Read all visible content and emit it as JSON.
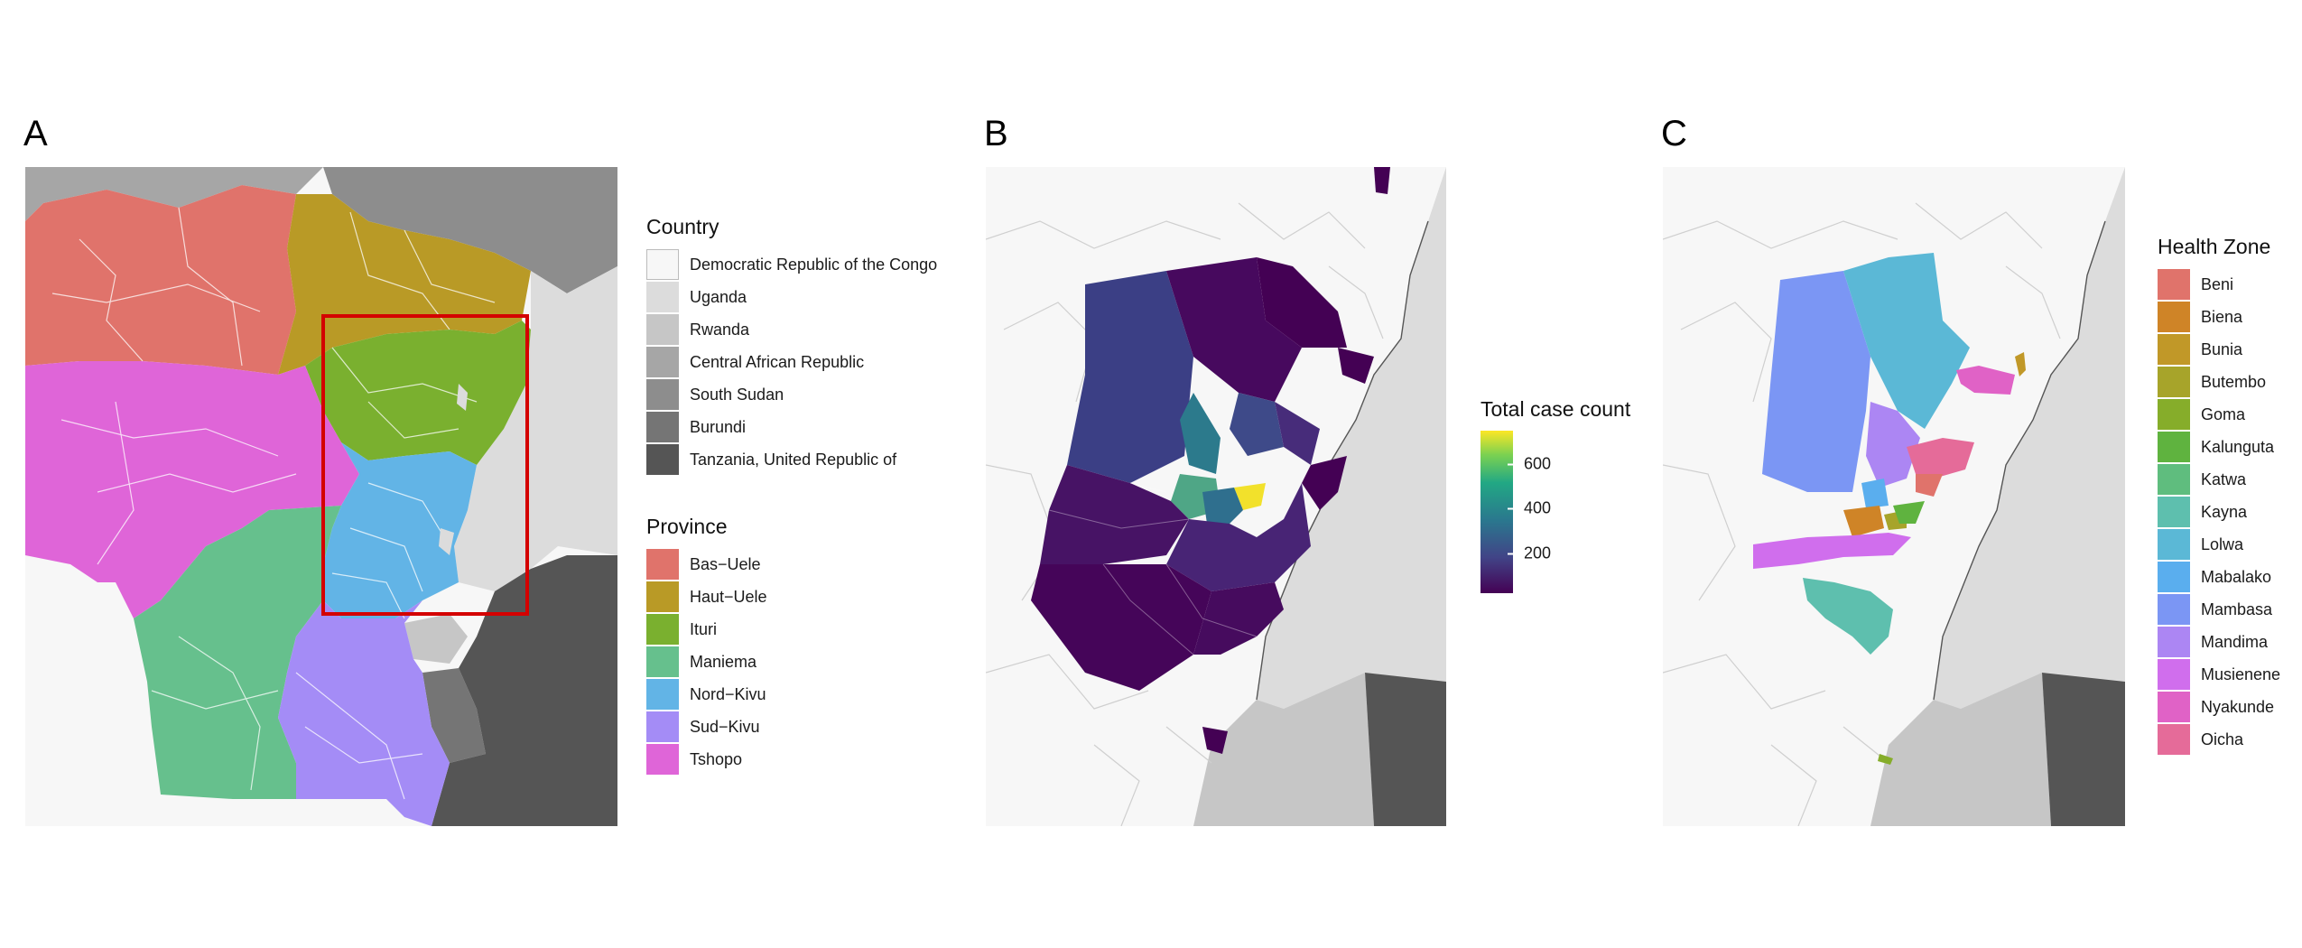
{
  "panels": {
    "a": {
      "letter": "A"
    },
    "b": {
      "letter": "B"
    },
    "c": {
      "letter": "C"
    }
  },
  "colors": {
    "drc": "#f7f7f7",
    "uganda": "#dcdcdc",
    "rwanda": "#c6c6c6",
    "car": "#a6a6a6",
    "south_sudan": "#8d8d8d",
    "burundi": "#757575",
    "tanzania": "#555555",
    "inset_box": "#d40000"
  },
  "legend_country": {
    "title": "Country",
    "items": [
      {
        "label": "Democratic Republic of the Congo",
        "color": "#f7f7f7"
      },
      {
        "label": "Uganda",
        "color": "#dcdcdc"
      },
      {
        "label": "Rwanda",
        "color": "#c6c6c6"
      },
      {
        "label": "Central African Republic",
        "color": "#a6a6a6"
      },
      {
        "label": "South Sudan",
        "color": "#8d8d8d"
      },
      {
        "label": "Burundi",
        "color": "#757575"
      },
      {
        "label": "Tanzania, United Republic of",
        "color": "#555555"
      }
    ]
  },
  "legend_province": {
    "title": "Province",
    "items": [
      {
        "label": "Bas−Uele",
        "color": "#e0736b"
      },
      {
        "label": "Haut−Uele",
        "color": "#b99a26"
      },
      {
        "label": "Ituri",
        "color": "#7ab02f"
      },
      {
        "label": "Maniema",
        "color": "#66c08d"
      },
      {
        "label": "Nord−Kivu",
        "color": "#62b4e6"
      },
      {
        "label": "Sud−Kivu",
        "color": "#a48cf6"
      },
      {
        "label": "Tshopo",
        "color": "#df65d8"
      }
    ]
  },
  "legend_cases": {
    "title": "Total case count",
    "ticks": [
      {
        "value": 600,
        "label": "600"
      },
      {
        "value": 400,
        "label": "400"
      },
      {
        "value": 200,
        "label": "200"
      }
    ],
    "range": [
      0,
      700
    ]
  },
  "legend_zone": {
    "title": "Health Zone",
    "items": [
      {
        "label": "Beni",
        "color": "#e0736b"
      },
      {
        "label": "Biena",
        "color": "#cf8427"
      },
      {
        "label": "Bunia",
        "color": "#c19828"
      },
      {
        "label": "Butembo",
        "color": "#a7a42a"
      },
      {
        "label": "Goma",
        "color": "#86ad2a"
      },
      {
        "label": "Kalunguta",
        "color": "#5fb33f"
      },
      {
        "label": "Katwa",
        "color": "#5fbd7e"
      },
      {
        "label": "Kayna",
        "color": "#5ebfae"
      },
      {
        "label": "Lolwa",
        "color": "#5bb8d6"
      },
      {
        "label": "Mabalako",
        "color": "#5aaeee"
      },
      {
        "label": "Mambasa",
        "color": "#7b96f4"
      },
      {
        "label": "Mandima",
        "color": "#ac86f3"
      },
      {
        "label": "Musienene",
        "color": "#d06eed"
      },
      {
        "label": "Nyakunde",
        "color": "#e062c6"
      },
      {
        "label": "Oicha",
        "color": "#e56b99"
      }
    ]
  }
}
